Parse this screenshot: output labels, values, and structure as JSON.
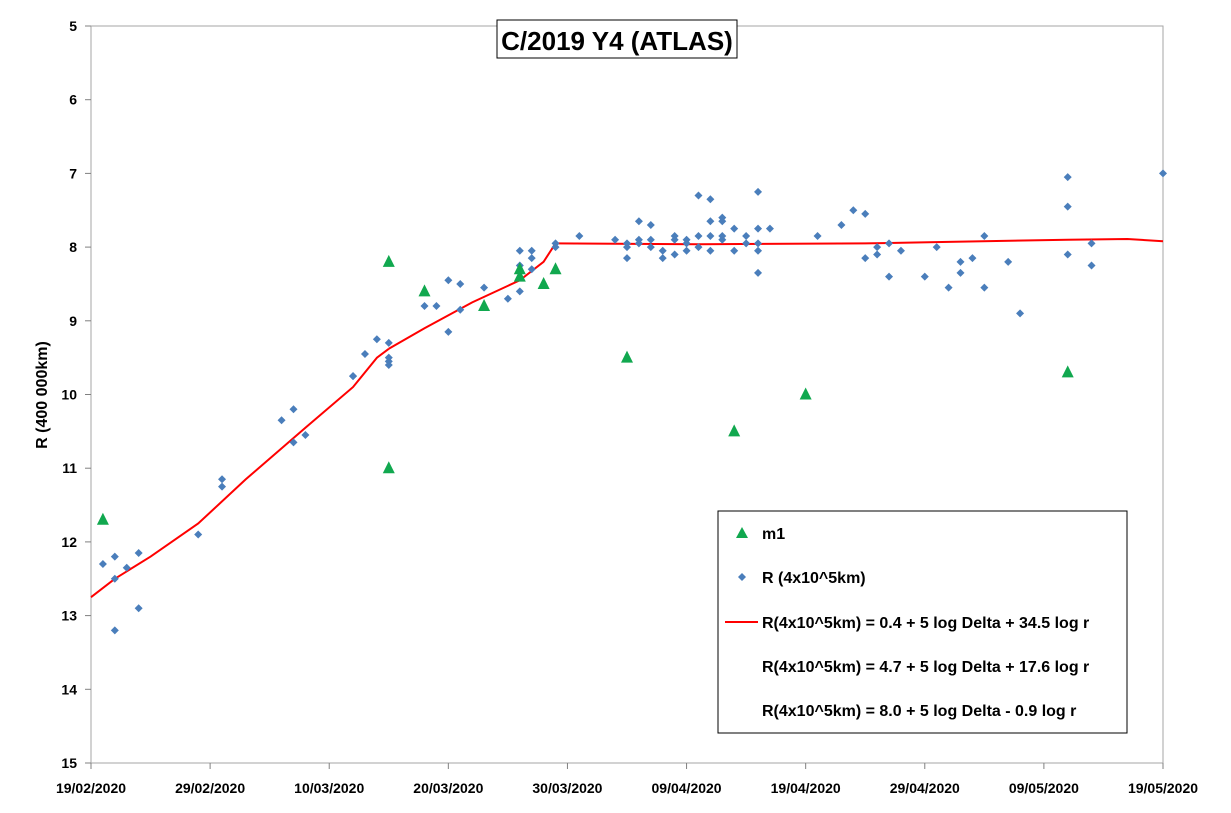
{
  "chart_data": {
    "type": "scatter",
    "title": "C/2019 Y4 (ATLAS)",
    "xlabel": "",
    "ylabel": "R (400 000km)",
    "x_range": [
      "2020-02-19",
      "2020-05-19"
    ],
    "ylim": [
      5,
      15
    ],
    "y_inverted": true,
    "grid": false,
    "legend_position": "bottom-right",
    "y_ticks": [
      "5",
      "6",
      "7",
      "8",
      "9",
      "10",
      "11",
      "12",
      "13",
      "14",
      "15"
    ],
    "x_ticks": [
      "19/02/2020",
      "29/02/2020",
      "10/03/2020",
      "20/03/2020",
      "30/03/2020",
      "09/04/2020",
      "19/04/2020",
      "29/04/2020",
      "09/05/2020",
      "19/05/2020"
    ],
    "series": [
      {
        "name": "m1",
        "marker": "triangle",
        "color": "#11a84f",
        "points": [
          [
            "2020-02-20",
            11.7
          ],
          [
            "2020-03-15",
            8.2
          ],
          [
            "2020-03-15",
            11.0
          ],
          [
            "2020-03-18",
            8.6
          ],
          [
            "2020-03-23",
            8.8
          ],
          [
            "2020-03-26",
            8.3
          ],
          [
            "2020-03-26",
            8.4
          ],
          [
            "2020-03-28",
            8.5
          ],
          [
            "2020-03-29",
            8.3
          ],
          [
            "2020-04-04",
            9.5
          ],
          [
            "2020-04-13",
            10.5
          ],
          [
            "2020-04-19",
            10.0
          ],
          [
            "2020-05-11",
            9.7
          ]
        ]
      },
      {
        "name": "R (4x10^5km)",
        "marker": "diamond",
        "color": "#4a7ebb",
        "points": [
          [
            "2020-02-20",
            12.3
          ],
          [
            "2020-02-21",
            12.2
          ],
          [
            "2020-02-21",
            13.2
          ],
          [
            "2020-02-21",
            12.5
          ],
          [
            "2020-02-22",
            12.35
          ],
          [
            "2020-02-23",
            12.15
          ],
          [
            "2020-02-23",
            12.9
          ],
          [
            "2020-02-28",
            11.9
          ],
          [
            "2020-03-01",
            11.25
          ],
          [
            "2020-03-01",
            11.15
          ],
          [
            "2020-03-06",
            10.35
          ],
          [
            "2020-03-07",
            10.2
          ],
          [
            "2020-03-07",
            10.65
          ],
          [
            "2020-03-08",
            10.55
          ],
          [
            "2020-03-12",
            9.75
          ],
          [
            "2020-03-12",
            9.75
          ],
          [
            "2020-03-13",
            9.45
          ],
          [
            "2020-03-14",
            9.25
          ],
          [
            "2020-03-15",
            9.5
          ],
          [
            "2020-03-15",
            9.3
          ],
          [
            "2020-03-15",
            9.55
          ],
          [
            "2020-03-15",
            9.6
          ],
          [
            "2020-03-18",
            8.8
          ],
          [
            "2020-03-19",
            8.8
          ],
          [
            "2020-03-20",
            8.45
          ],
          [
            "2020-03-20",
            9.15
          ],
          [
            "2020-03-21",
            8.5
          ],
          [
            "2020-03-21",
            8.85
          ],
          [
            "2020-03-23",
            8.55
          ],
          [
            "2020-03-25",
            8.7
          ],
          [
            "2020-03-26",
            8.6
          ],
          [
            "2020-03-26",
            8.25
          ],
          [
            "2020-03-26",
            8.05
          ],
          [
            "2020-03-27",
            8.15
          ],
          [
            "2020-03-27",
            8.3
          ],
          [
            "2020-03-27",
            8.05
          ],
          [
            "2020-03-29",
            8.0
          ],
          [
            "2020-03-29",
            7.95
          ],
          [
            "2020-03-31",
            7.85
          ],
          [
            "2020-04-03",
            7.9
          ],
          [
            "2020-04-04",
            8.0
          ],
          [
            "2020-04-04",
            8.15
          ],
          [
            "2020-04-04",
            7.95
          ],
          [
            "2020-04-05",
            7.95
          ],
          [
            "2020-04-05",
            7.65
          ],
          [
            "2020-04-05",
            7.9
          ],
          [
            "2020-04-06",
            7.9
          ],
          [
            "2020-04-06",
            8.0
          ],
          [
            "2020-04-06",
            7.7
          ],
          [
            "2020-04-07",
            8.05
          ],
          [
            "2020-04-07",
            8.15
          ],
          [
            "2020-04-08",
            7.9
          ],
          [
            "2020-04-08",
            8.1
          ],
          [
            "2020-04-08",
            7.85
          ],
          [
            "2020-04-09",
            7.95
          ],
          [
            "2020-04-09",
            8.05
          ],
          [
            "2020-04-09",
            7.9
          ],
          [
            "2020-04-10",
            7.3
          ],
          [
            "2020-04-10",
            7.85
          ],
          [
            "2020-04-10",
            8.0
          ],
          [
            "2020-04-11",
            7.35
          ],
          [
            "2020-04-11",
            7.65
          ],
          [
            "2020-04-11",
            7.85
          ],
          [
            "2020-04-11",
            8.05
          ],
          [
            "2020-04-12",
            7.6
          ],
          [
            "2020-04-12",
            7.85
          ],
          [
            "2020-04-12",
            7.9
          ],
          [
            "2020-04-12",
            7.65
          ],
          [
            "2020-04-13",
            7.75
          ],
          [
            "2020-04-13",
            8.05
          ],
          [
            "2020-04-14",
            7.95
          ],
          [
            "2020-04-14",
            7.85
          ],
          [
            "2020-04-15",
            7.25
          ],
          [
            "2020-04-15",
            7.75
          ],
          [
            "2020-04-15",
            7.95
          ],
          [
            "2020-04-15",
            8.05
          ],
          [
            "2020-04-15",
            8.35
          ],
          [
            "2020-04-16",
            7.75
          ],
          [
            "2020-04-20",
            7.85
          ],
          [
            "2020-04-22",
            7.7
          ],
          [
            "2020-04-23",
            7.5
          ],
          [
            "2020-04-24",
            7.55
          ],
          [
            "2020-04-24",
            8.15
          ],
          [
            "2020-04-25",
            8.0
          ],
          [
            "2020-04-25",
            8.1
          ],
          [
            "2020-04-26",
            7.95
          ],
          [
            "2020-04-26",
            8.4
          ],
          [
            "2020-04-27",
            8.05
          ],
          [
            "2020-04-29",
            8.4
          ],
          [
            "2020-04-30",
            8.0
          ],
          [
            "2020-05-01",
            8.55
          ],
          [
            "2020-05-02",
            8.35
          ],
          [
            "2020-05-02",
            8.2
          ],
          [
            "2020-05-03",
            8.15
          ],
          [
            "2020-05-04",
            7.85
          ],
          [
            "2020-05-04",
            8.55
          ],
          [
            "2020-05-06",
            8.2
          ],
          [
            "2020-05-07",
            8.9
          ],
          [
            "2020-05-11",
            7.05
          ],
          [
            "2020-05-11",
            7.45
          ],
          [
            "2020-05-11",
            8.1
          ],
          [
            "2020-05-13",
            7.95
          ],
          [
            "2020-05-13",
            8.25
          ],
          [
            "2020-05-19",
            7.0
          ]
        ]
      },
      {
        "name": "R(4x10^5km) = 0.4 + 5 log Delta + 34.5 log r",
        "marker": "line",
        "color": "#ff0000",
        "points": [
          [
            "2020-02-19",
            12.75
          ],
          [
            "2020-02-21",
            12.5
          ],
          [
            "2020-02-24",
            12.2
          ],
          [
            "2020-02-28",
            11.75
          ],
          [
            "2020-03-03",
            11.15
          ],
          [
            "2020-03-08",
            10.45
          ],
          [
            "2020-03-12",
            9.9
          ],
          [
            "2020-03-14",
            9.5
          ],
          [
            "2020-03-15",
            9.38
          ]
        ]
      },
      {
        "name": "R(4x10^5km) = 4.7 + 5 log Delta + 17.6 log r",
        "marker": "line",
        "color": "#ff0000",
        "points": [
          [
            "2020-03-15",
            9.38
          ],
          [
            "2020-03-18",
            9.1
          ],
          [
            "2020-03-22",
            8.75
          ],
          [
            "2020-03-26",
            8.45
          ],
          [
            "2020-03-28",
            8.2
          ],
          [
            "2020-03-29",
            7.95
          ]
        ]
      },
      {
        "name": "R(4x10^5km) = 8.0 + 5 log Delta - 0.9 log r",
        "marker": "line",
        "color": "#ff0000",
        "points": [
          [
            "2020-03-29",
            7.95
          ],
          [
            "2020-04-10",
            7.96
          ],
          [
            "2020-04-24",
            7.95
          ],
          [
            "2020-05-01",
            7.93
          ],
          [
            "2020-05-11",
            7.9
          ],
          [
            "2020-05-16",
            7.89
          ],
          [
            "2020-05-19",
            7.92
          ]
        ]
      }
    ]
  }
}
